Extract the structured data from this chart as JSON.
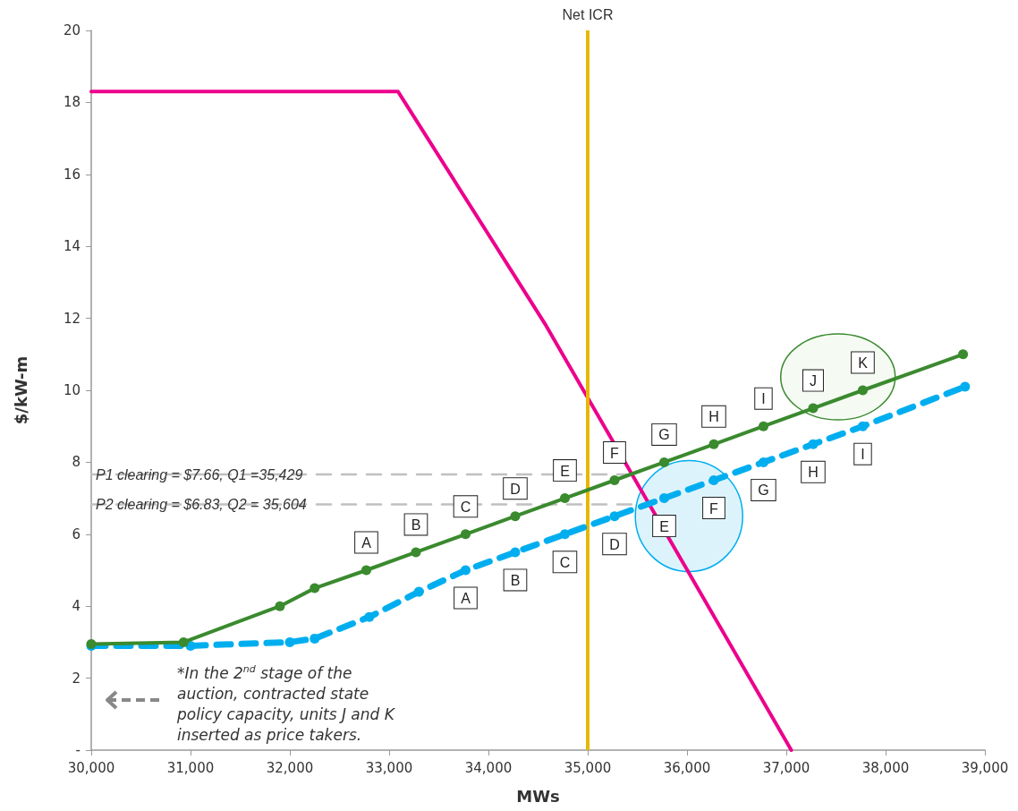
{
  "chart_data": {
    "type": "line",
    "xlabel": "MWs",
    "ylabel": "$/kW-m",
    "xlim": [
      30000,
      39000
    ],
    "xticks": [
      {
        "value": 30000,
        "label": "30,000"
      },
      {
        "value": 31000,
        "label": "31,000"
      },
      {
        "value": 32000,
        "label": "32,000"
      },
      {
        "value": 33000,
        "label": "33,000"
      },
      {
        "value": 34000,
        "label": "34,000"
      },
      {
        "value": 35000,
        "label": "35,000"
      },
      {
        "value": 36000,
        "label": "36,000"
      },
      {
        "value": 37000,
        "label": "37,000"
      },
      {
        "value": 38000,
        "label": "38,000"
      },
      {
        "value": 39000,
        "label": "39,000"
      }
    ],
    "ylim": [
      0,
      20
    ],
    "yticks": [
      {
        "value": 0,
        "label": "-"
      },
      2,
      4,
      6,
      8,
      10,
      12,
      14,
      16,
      18,
      20
    ],
    "grid": false,
    "legend": false,
    "series": [
      {
        "color": "#ec008c",
        "marker": "none",
        "line_style": "solid",
        "x": [
          30000,
          33090,
          34580,
          37050
        ],
        "values": [
          18.3,
          18.3,
          11.8,
          0
        ]
      },
      {
        "color": "#3a8a2e",
        "marker": "circle",
        "line_style": "solid",
        "x": [
          30000,
          30930,
          31900,
          32250,
          32770,
          33270,
          33770,
          34270,
          34770,
          35270,
          35770,
          36270,
          36770,
          37270,
          37770,
          38780
        ],
        "values": [
          2.95,
          3.0,
          4.0,
          4.5,
          5.0,
          5.5,
          6.0,
          6.5,
          7.0,
          7.5,
          8.0,
          8.5,
          9.0,
          9.5,
          10.0,
          11.0
        ],
        "value_labels": [
          null,
          null,
          null,
          null,
          "A",
          "B",
          "C",
          "D",
          "E",
          "F",
          "G",
          "H",
          "I",
          "J",
          "K",
          null
        ]
      },
      {
        "color": "#00aeef",
        "marker": "circle",
        "line_style": "dashed",
        "x": [
          30000,
          31000,
          32000,
          32250,
          32800,
          33300,
          33770,
          34270,
          34770,
          35270,
          35770,
          36270,
          36770,
          37270,
          37770,
          38800
        ],
        "values": [
          2.9,
          2.9,
          3.0,
          3.1,
          3.7,
          4.4,
          5.0,
          5.5,
          6.0,
          6.5,
          7.0,
          7.5,
          8.0,
          8.5,
          9.0,
          10.1
        ],
        "value_labels": [
          null,
          null,
          null,
          null,
          null,
          null,
          "A",
          "B",
          "C",
          "D",
          "E",
          "F",
          "G",
          "H",
          "I",
          null
        ]
      },
      {
        "name": "P1 clearing = $7.66, Q1 =35,429",
        "color": "#c0c0c0",
        "marker": "none",
        "line_style": "dashed",
        "x": [
          30000,
          35429
        ],
        "values": [
          7.66,
          7.66
        ]
      },
      {
        "name": "P2 clearing = $6.83, Q2 = 35,604",
        "color": "#c0c0c0",
        "marker": "none",
        "line_style": "dashed",
        "x": [
          30000,
          35604
        ],
        "values": [
          6.83,
          6.83
        ]
      }
    ],
    "ref_lines": [
      {
        "axis": "x",
        "value": 35000,
        "label": "Net ICR",
        "color": "#e6b800"
      }
    ],
    "annotations": [
      "*In the 2$^{nd}$ stage of the auction, contracted state policy capacity, units J and K inserted as price takers."
    ]
  }
}
